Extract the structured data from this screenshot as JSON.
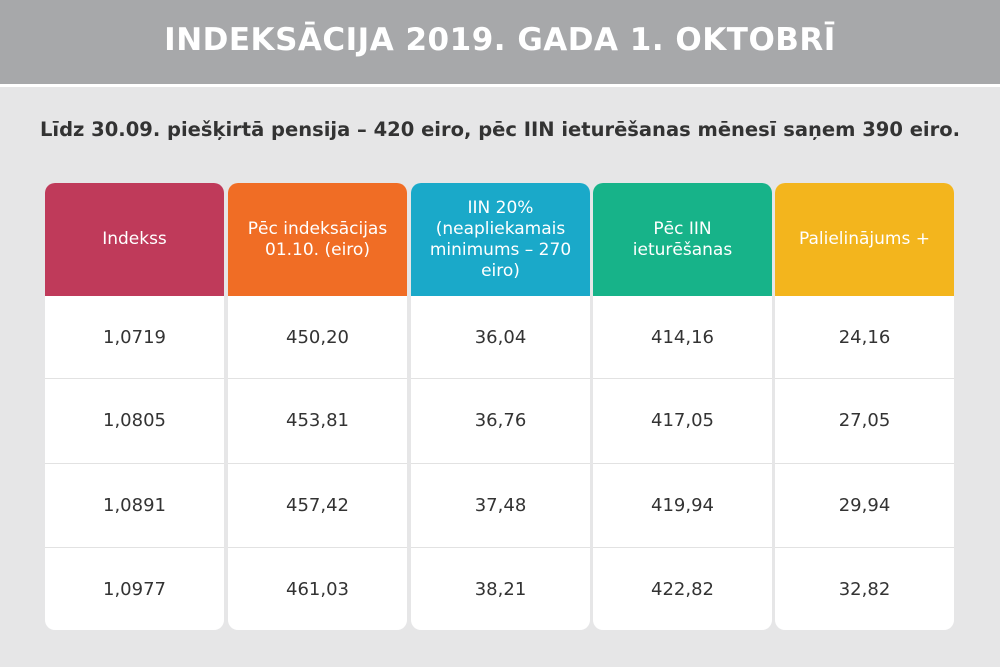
{
  "header": {
    "title": "INDEKSĀCIJA 2019. GADA 1. OKTOBRĪ"
  },
  "subtitle": "Līdz 30.09. piešķirtā pensija – 420 eiro, pēc IIN ieturēšanas mēnesī saņem 390 eiro.",
  "colors": {
    "header_bg": "#a7a8aa",
    "page_bg": "#e6e6e7",
    "col_index": "#bf3a5a",
    "col_after_index": "#f06d25",
    "col_tax": "#1aa9c9",
    "col_after_tax": "#17b389",
    "col_increase": "#f3b51d"
  },
  "table": {
    "columns": [
      {
        "header": "Indekss",
        "values": [
          "1,0719",
          "1,0805",
          "1,0891",
          "1,0977"
        ]
      },
      {
        "header": "Pēc indeksācijas 01.10. (eiro)",
        "values": [
          "450,20",
          "453,81",
          "457,42",
          "461,03"
        ]
      },
      {
        "header": "IIN 20% (neapliekamais minimums – 270 eiro)",
        "values": [
          "36,04",
          "36,76",
          "37,48",
          "38,21"
        ]
      },
      {
        "header": "Pēc IIN ieturēšanas",
        "values": [
          "414,16",
          "417,05",
          "419,94",
          "422,82"
        ]
      },
      {
        "header": "Palielinājums +",
        "values": [
          "24,16",
          "27,05",
          "29,94",
          "32,82"
        ]
      }
    ]
  }
}
